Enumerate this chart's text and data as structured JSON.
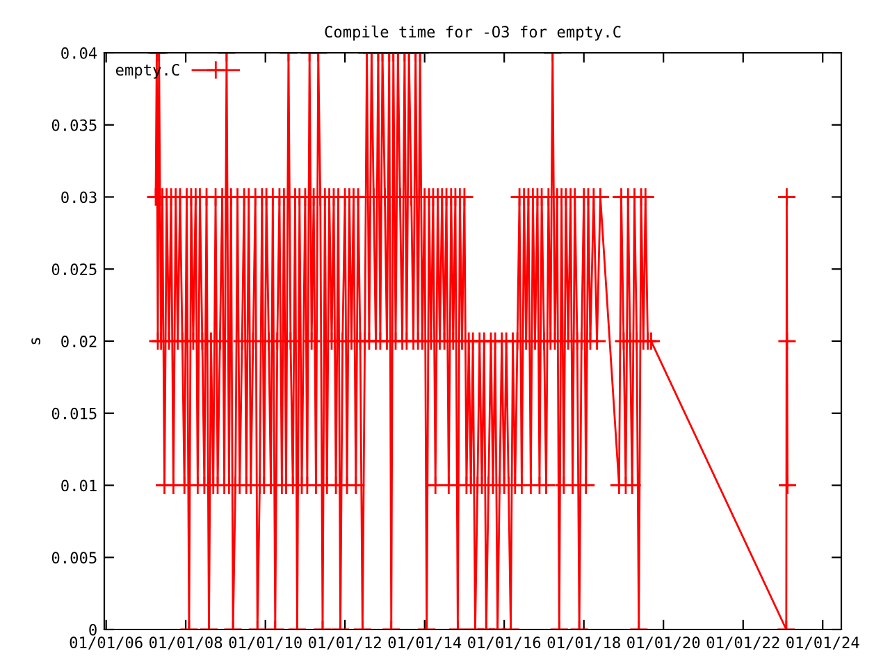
{
  "chart_data": {
    "type": "line",
    "title": "Compile time for -O3 for empty.C",
    "ylabel": "s",
    "x": [
      "2007-04-01",
      "2007-04-10",
      "2007-04-20",
      "2007-05-01",
      "2007-05-10",
      "2007-05-20",
      "2007-06-01",
      "2007-06-20",
      "2007-07-10",
      "2007-08-01",
      "2007-08-20",
      "2007-09-10",
      "2007-10-01",
      "2007-10-20",
      "2007-11-10",
      "2007-12-01",
      "2007-12-20",
      "2008-01-10",
      "2008-02-01",
      "2008-02-20",
      "2008-03-10",
      "2008-04-01",
      "2008-04-20",
      "2008-05-10",
      "2008-06-01",
      "2008-06-20",
      "2008-07-10",
      "2008-08-01",
      "2008-08-20",
      "2008-09-10",
      "2008-10-01",
      "2008-10-20",
      "2008-11-10",
      "2008-12-01",
      "2008-12-20",
      "2009-01-10",
      "2009-02-01",
      "2009-02-20",
      "2009-03-10",
      "2009-04-01",
      "2009-04-20",
      "2009-05-10",
      "2009-06-01",
      "2009-06-20",
      "2009-07-10",
      "2009-08-01",
      "2009-08-20",
      "2009-09-10",
      "2009-10-01",
      "2009-10-20",
      "2009-11-10",
      "2009-12-01",
      "2009-12-20",
      "2010-01-10",
      "2010-02-01",
      "2010-02-20",
      "2010-03-10",
      "2010-04-01",
      "2010-04-20",
      "2010-05-10",
      "2010-06-01",
      "2010-06-20",
      "2010-07-10",
      "2010-08-01",
      "2010-08-20",
      "2010-09-10",
      "2010-10-01",
      "2010-10-20",
      "2010-11-10",
      "2010-12-01",
      "2011-01-01",
      "2011-01-20",
      "2011-02-10",
      "2011-03-01",
      "2011-03-20",
      "2011-04-10",
      "2011-05-01",
      "2011-05-20",
      "2011-06-10",
      "2011-07-01",
      "2011-07-20",
      "2011-08-10",
      "2011-09-01",
      "2011-09-20",
      "2011-10-10",
      "2011-11-01",
      "2011-11-20",
      "2011-12-10",
      "2012-01-01",
      "2012-01-20",
      "2012-02-10",
      "2012-03-01",
      "2012-03-20",
      "2012-04-10",
      "2012-05-01",
      "2012-05-20",
      "2012-06-10",
      "2012-07-01",
      "2012-07-20",
      "2012-08-10",
      "2012-09-01",
      "2012-09-20",
      "2012-10-10",
      "2012-11-01",
      "2012-11-20",
      "2012-12-10",
      "2013-01-01",
      "2013-01-20",
      "2013-02-10",
      "2013-03-01",
      "2013-03-20",
      "2013-04-10",
      "2013-05-01",
      "2013-05-20",
      "2013-06-10",
      "2013-07-01",
      "2013-07-20",
      "2013-08-10",
      "2013-09-01",
      "2013-09-20",
      "2013-10-10",
      "2013-11-01",
      "2013-11-20",
      "2013-12-10",
      "2014-01-01",
      "2014-01-20",
      "2014-02-10",
      "2014-03-01",
      "2014-03-20",
      "2014-04-10",
      "2014-05-01",
      "2014-05-20",
      "2014-06-10",
      "2014-07-01",
      "2014-07-20",
      "2014-08-10",
      "2014-09-01",
      "2014-09-20",
      "2014-10-10",
      "2014-11-01",
      "2014-11-20",
      "2014-12-10",
      "2015-01-01",
      "2015-01-20",
      "2015-02-10",
      "2015-03-01",
      "2015-03-20",
      "2015-04-10",
      "2015-05-01",
      "2015-05-20",
      "2015-06-10",
      "2015-07-01",
      "2015-07-20",
      "2015-08-10",
      "2015-09-01",
      "2015-09-20",
      "2015-10-10",
      "2015-11-01",
      "2015-11-20",
      "2015-12-10",
      "2016-01-01",
      "2016-01-20",
      "2016-02-10",
      "2016-03-01",
      "2016-03-20",
      "2016-04-10",
      "2016-05-01",
      "2016-05-20",
      "2016-06-10",
      "2016-07-01",
      "2016-07-20",
      "2016-08-10",
      "2016-09-01",
      "2016-09-20",
      "2016-10-10",
      "2016-11-01",
      "2016-11-20",
      "2016-12-10",
      "2017-01-01",
      "2017-01-20",
      "2017-02-10",
      "2017-03-01",
      "2017-03-20",
      "2017-04-10",
      "2017-05-01",
      "2017-05-20",
      "2017-06-10",
      "2017-07-01",
      "2017-07-20",
      "2017-08-10",
      "2017-09-01",
      "2017-09-20",
      "2017-10-10",
      "2017-11-01",
      "2017-11-20",
      "2017-12-10",
      "2018-01-01",
      "2018-01-20",
      "2018-02-10",
      "2018-03-01",
      "2018-04-01",
      "2018-05-01",
      "2018-06-01",
      "2018-11-20",
      "2018-12-10",
      "2019-01-01",
      "2019-01-20",
      "2019-02-10",
      "2019-03-01",
      "2019-03-20",
      "2019-04-10",
      "2019-05-01",
      "2019-05-20",
      "2019-06-10",
      "2019-07-01",
      "2019-07-20",
      "2019-08-10",
      "2019-09-10",
      "2023-02-01",
      "2023-02-05",
      "2023-02-08",
      "2023-02-12"
    ],
    "series": [
      {
        "name": "empty.C",
        "color": "#ff0000",
        "values": [
          0.03,
          0.04,
          0.02,
          0.04,
          0.03,
          0.02,
          0.03,
          0.01,
          0.03,
          0.02,
          0.03,
          0.01,
          0.03,
          0.02,
          0.03,
          0.02,
          0.01,
          0.03,
          0.0,
          0.03,
          0.02,
          0.03,
          0.01,
          0.03,
          0.02,
          0.01,
          0.03,
          0.0,
          0.02,
          0.01,
          0.03,
          0.01,
          0.02,
          0.03,
          0.01,
          0.04,
          0.01,
          0.03,
          0.0,
          0.01,
          0.03,
          0.01,
          0.02,
          0.03,
          0.01,
          0.03,
          0.01,
          0.02,
          0.03,
          0.0,
          0.01,
          0.03,
          0.01,
          0.03,
          0.02,
          0.01,
          0.03,
          0.0,
          0.02,
          0.03,
          0.01,
          0.03,
          0.01,
          0.04,
          0.02,
          0.01,
          0.03,
          0.0,
          0.03,
          0.01,
          0.03,
          0.01,
          0.04,
          0.02,
          0.03,
          0.01,
          0.04,
          0.03,
          0.0,
          0.03,
          0.01,
          0.03,
          0.02,
          0.03,
          0.01,
          0.03,
          0.0,
          0.02,
          0.03,
          0.01,
          0.03,
          0.02,
          0.03,
          0.01,
          0.03,
          0.02,
          0.0,
          0.02,
          0.04,
          0.02,
          0.04,
          0.03,
          0.02,
          0.04,
          0.02,
          0.04,
          0.03,
          0.02,
          0.04,
          0.0,
          0.04,
          0.02,
          0.04,
          0.03,
          0.02,
          0.04,
          0.02,
          0.04,
          0.03,
          0.02,
          0.04,
          0.02,
          0.04,
          0.02,
          0.03,
          0.0,
          0.03,
          0.02,
          0.03,
          0.01,
          0.03,
          0.02,
          0.03,
          0.02,
          0.03,
          0.01,
          0.03,
          0.02,
          0.03,
          0.0,
          0.03,
          0.02,
          0.03,
          0.01,
          0.02,
          0.01,
          0.02,
          0.0,
          0.01,
          0.02,
          0.01,
          0.02,
          0.0,
          0.01,
          0.02,
          0.01,
          0.02,
          0.0,
          0.01,
          0.02,
          0.01,
          0.02,
          0.01,
          0.0,
          0.02,
          0.01,
          0.02,
          0.03,
          0.01,
          0.03,
          0.02,
          0.03,
          0.01,
          0.03,
          0.02,
          0.03,
          0.01,
          0.03,
          0.02,
          0.01,
          0.03,
          0.02,
          0.04,
          0.02,
          0.03,
          0.0,
          0.03,
          0.01,
          0.03,
          0.02,
          0.03,
          0.01,
          0.03,
          0.02,
          0.0,
          0.02,
          0.03,
          0.01,
          0.03,
          0.02,
          0.03,
          0.02,
          0.03,
          0.01,
          0.03,
          0.02,
          0.01,
          0.03,
          0.02,
          0.01,
          0.03,
          0.02,
          0.0,
          0.03,
          0.02,
          0.03,
          0.02,
          0.02,
          0.0,
          0.03,
          0.02,
          0.01
        ]
      }
    ],
    "xlim": [
      "2005-12-15",
      "2024-06-20"
    ],
    "xticks": [
      {
        "value": "2006-01-01",
        "label": "01/01/06"
      },
      {
        "value": "2008-01-01",
        "label": "01/01/08"
      },
      {
        "value": "2010-01-01",
        "label": "01/01/10"
      },
      {
        "value": "2012-01-01",
        "label": "01/01/12"
      },
      {
        "value": "2014-01-01",
        "label": "01/01/14"
      },
      {
        "value": "2016-01-01",
        "label": "01/01/16"
      },
      {
        "value": "2018-01-01",
        "label": "01/01/18"
      },
      {
        "value": "2020-01-01",
        "label": "01/01/20"
      },
      {
        "value": "2022-01-01",
        "label": "01/01/22"
      },
      {
        "value": "2024-01-01",
        "label": "01/01/24"
      }
    ],
    "ylim": [
      0,
      0.04
    ],
    "yticks": [
      0,
      0.005,
      0.01,
      0.015,
      0.02,
      0.025,
      0.03,
      0.035,
      0.04
    ],
    "grid": false,
    "legend": "top left",
    "marker": "cross",
    "line_style": "solid"
  }
}
